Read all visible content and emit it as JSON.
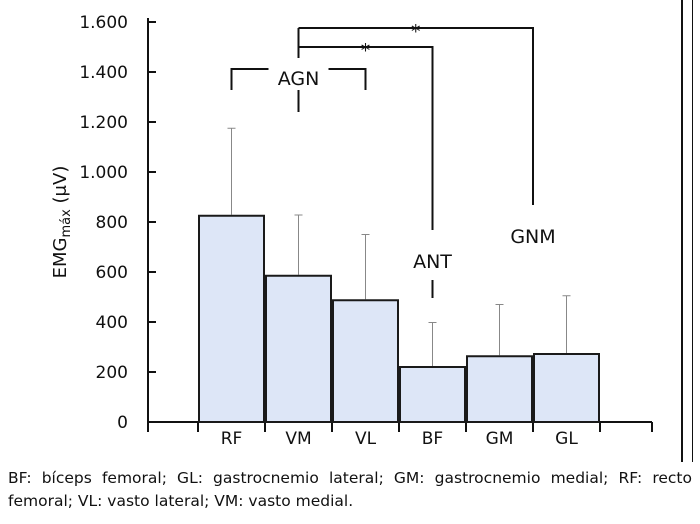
{
  "chart_data": {
    "type": "bar",
    "categories": [
      "RF",
      "VM",
      "VL",
      "BF",
      "GM",
      "GL"
    ],
    "values": [
      825,
      585,
      487,
      220,
      263,
      272
    ],
    "error_upper": [
      1175,
      828,
      750,
      398,
      470,
      505
    ],
    "ylabel_main": "EMG",
    "ylabel_sub": "máx",
    "ylabel_unit": "(μV)",
    "ylim": [
      0,
      1600
    ],
    "yticks": [
      0,
      200,
      400,
      600,
      800,
      1000,
      1200,
      1400,
      1600
    ],
    "ytick_labels": [
      "0",
      "200",
      "400",
      "600",
      "800",
      "1.000",
      "1.200",
      "1.400",
      "1.600"
    ],
    "group_labels": {
      "agn": "AGN",
      "ant": "ANT",
      "gnm": "GNM"
    },
    "significance_marker": "*",
    "colors": {
      "bar_fill": "#dde6f7",
      "bar_stroke": "#1a1a1a",
      "axis": "#111111",
      "error": "#888888"
    }
  },
  "caption": "BF: bíceps femoral; GL: gastrocnemio lateral; GM: gastrocnemio medial; RF: recto femoral; VL: vasto lateral; VM: vasto medial."
}
